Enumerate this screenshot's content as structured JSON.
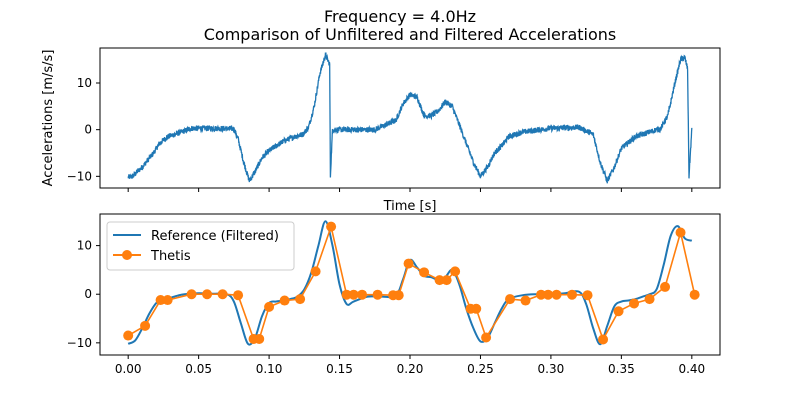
{
  "chart_data": [
    {
      "type": "line",
      "title": "Frequency = 4.0Hz",
      "subtitle": "Comparison of Unfiltered and Filtered Accelerations",
      "xlabel": "Time [s]",
      "ylabel": "Accelerations [m/s/s]",
      "xlim": [
        -0.02,
        0.42
      ],
      "ylim": [
        -12.5,
        17.5
      ],
      "yticks": [
        -10,
        0,
        10
      ],
      "ytick_labels": [
        "−10",
        "0",
        "10"
      ],
      "grid": false,
      "colors": {
        "raw": "#1f77b4"
      },
      "series": [
        {
          "noise_amplitude": 0.6,
          "x": [
            0.0,
            0.003,
            0.01,
            0.018,
            0.022,
            0.028,
            0.035,
            0.045,
            0.06,
            0.075,
            0.078,
            0.082,
            0.086,
            0.09,
            0.095,
            0.1,
            0.11,
            0.118,
            0.124,
            0.128,
            0.132,
            0.136,
            0.14,
            0.143,
            0.1435,
            0.145,
            0.15,
            0.16,
            0.175,
            0.19,
            0.195,
            0.2,
            0.205,
            0.21,
            0.215,
            0.22,
            0.225,
            0.23,
            0.235,
            0.24,
            0.245,
            0.25,
            0.255,
            0.26,
            0.265,
            0.27,
            0.28,
            0.3,
            0.32,
            0.33,
            0.335,
            0.34,
            0.345,
            0.35,
            0.36,
            0.37,
            0.378,
            0.383,
            0.388,
            0.392,
            0.395,
            0.397,
            0.398,
            0.4
          ],
          "y": [
            -10.2,
            -10.0,
            -8.0,
            -5.0,
            -3.0,
            -1.5,
            -0.8,
            0.3,
            0.3,
            0.2,
            -2.0,
            -7.0,
            -11.0,
            -9.0,
            -6.0,
            -4.5,
            -2.5,
            -1.5,
            -1.0,
            0.5,
            5.0,
            12.0,
            16.0,
            14.0,
            -10.0,
            0.0,
            0.0,
            0.0,
            0.0,
            2.0,
            5.5,
            7.5,
            7.0,
            3.0,
            3.0,
            4.0,
            6.0,
            5.0,
            1.0,
            -3.0,
            -7.0,
            -10.0,
            -8.0,
            -5.0,
            -3.5,
            -1.5,
            -0.5,
            0.3,
            0.5,
            -1.0,
            -7.0,
            -11.0,
            -8.0,
            -4.0,
            -1.5,
            -0.5,
            0.3,
            3.0,
            10.0,
            15.0,
            15.5,
            13.0,
            -10.0,
            0.0
          ]
        }
      ]
    },
    {
      "type": "line",
      "xlabel": "",
      "ylabel": "",
      "xlim": [
        -0.02,
        0.42
      ],
      "ylim": [
        -12.5,
        16.5
      ],
      "xticks": [
        0.0,
        0.05,
        0.1,
        0.15,
        0.2,
        0.25,
        0.3,
        0.35,
        0.4
      ],
      "xtick_labels": [
        "0.00",
        "0.05",
        "0.10",
        "0.15",
        "0.20",
        "0.25",
        "0.30",
        "0.35",
        "0.40"
      ],
      "yticks": [
        -10,
        0,
        10
      ],
      "ytick_labels": [
        "−10",
        "0",
        "10"
      ],
      "grid": false,
      "legend_position": "upper-left",
      "series": [
        {
          "name": "Reference (Filtered)",
          "color": "#1f77b4",
          "marker": "none",
          "x": [
            0.0,
            0.005,
            0.01,
            0.015,
            0.02,
            0.025,
            0.03,
            0.035,
            0.04,
            0.05,
            0.06,
            0.07,
            0.075,
            0.08,
            0.085,
            0.09,
            0.095,
            0.1,
            0.105,
            0.11,
            0.115,
            0.12,
            0.125,
            0.13,
            0.135,
            0.14,
            0.145,
            0.15,
            0.155,
            0.16,
            0.17,
            0.18,
            0.19,
            0.195,
            0.2,
            0.205,
            0.21,
            0.215,
            0.22,
            0.225,
            0.23,
            0.235,
            0.24,
            0.245,
            0.25,
            0.255,
            0.26,
            0.265,
            0.27,
            0.28,
            0.29,
            0.3,
            0.31,
            0.32,
            0.325,
            0.33,
            0.335,
            0.34,
            0.345,
            0.35,
            0.355,
            0.36,
            0.365,
            0.37,
            0.375,
            0.38,
            0.385,
            0.39,
            0.395,
            0.4
          ],
          "y": [
            -10.2,
            -9.5,
            -7.0,
            -4.0,
            -1.8,
            -1.0,
            -0.7,
            -0.3,
            0.0,
            0.2,
            0.1,
            0.0,
            -1.5,
            -6.0,
            -10.2,
            -9.0,
            -4.5,
            -1.8,
            -1.5,
            -1.3,
            -1.0,
            -0.5,
            1.0,
            4.5,
            10.0,
            15.0,
            10.0,
            2.0,
            -2.0,
            -1.5,
            -0.5,
            -0.5,
            -0.3,
            3.0,
            7.0,
            5.5,
            3.8,
            3.5,
            3.0,
            3.5,
            5.0,
            2.0,
            -3.0,
            -7.0,
            -9.7,
            -9.0,
            -6.0,
            -3.0,
            -1.0,
            -0.2,
            0.0,
            0.0,
            0.2,
            0.5,
            -2.0,
            -7.0,
            -10.3,
            -6.5,
            -2.5,
            -1.5,
            -1.3,
            -1.0,
            -0.5,
            0.0,
            1.0,
            6.0,
            12.0,
            14.0,
            11.5,
            11.0
          ]
        },
        {
          "name": "Thetis",
          "color": "#ff7f0e",
          "marker": "circle",
          "x": [
            0.0,
            0.012,
            0.023,
            0.028,
            0.045,
            0.056,
            0.067,
            0.078,
            0.089,
            0.093,
            0.1,
            0.111,
            0.122,
            0.133,
            0.144,
            0.155,
            0.16,
            0.166,
            0.177,
            0.188,
            0.192,
            0.199,
            0.21,
            0.221,
            0.226,
            0.232,
            0.243,
            0.247,
            0.254,
            0.271,
            0.282,
            0.293,
            0.298,
            0.304,
            0.315,
            0.326,
            0.337,
            0.348,
            0.359,
            0.37,
            0.381,
            0.392,
            0.402
          ],
          "y": [
            -8.5,
            -6.5,
            -1.2,
            -1.2,
            0.0,
            0.0,
            0.0,
            -0.2,
            -9.2,
            -9.2,
            -2.6,
            -1.3,
            -1.0,
            4.7,
            13.9,
            -0.1,
            -0.1,
            -0.1,
            -0.1,
            -0.2,
            -0.2,
            6.3,
            4.5,
            2.9,
            2.9,
            4.7,
            -3.0,
            -3.0,
            -8.9,
            -1.0,
            -1.3,
            -0.1,
            -0.1,
            -0.1,
            -0.1,
            -0.2,
            -9.3,
            -3.5,
            -1.9,
            -1.0,
            1.5,
            12.7,
            -0.1
          ]
        }
      ]
    }
  ]
}
